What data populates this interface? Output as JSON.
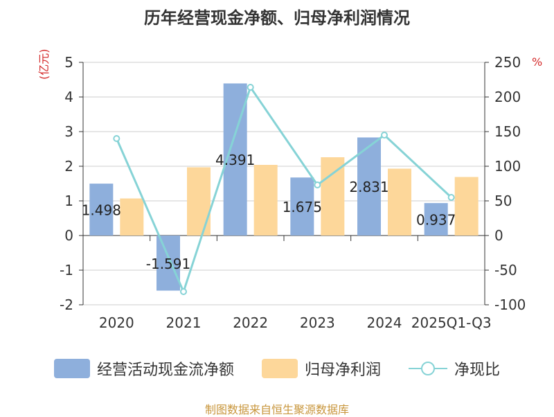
{
  "title": "历年经营现金净额、归母净利润情况",
  "left_unit": "(亿元)",
  "right_unit": "%",
  "source": "制图数据来自恒生聚源数据库",
  "colors": {
    "cash_flow": "#8eafdc",
    "net_profit": "#fdd79a",
    "ratio": "#86d3d6",
    "axis": "#333333",
    "grid": "#cccccc",
    "unit": "#d42a2a"
  },
  "chart_data": {
    "type": "bar",
    "categories": [
      "2020",
      "2021",
      "2022",
      "2023",
      "2024",
      "2025Q1-Q3"
    ],
    "series": [
      {
        "name": "经营活动现金流净额",
        "type": "bar",
        "axis": "left",
        "values": [
          1.498,
          -1.591,
          4.391,
          1.675,
          2.831,
          0.937
        ],
        "labels": [
          "1.498",
          "-1.591",
          "4.391",
          "1.675",
          "2.831",
          "0.937"
        ]
      },
      {
        "name": "归母净利润",
        "type": "bar",
        "axis": "left",
        "values": [
          1.07,
          1.97,
          2.04,
          2.26,
          1.93,
          1.69
        ]
      },
      {
        "name": "净现比",
        "type": "line",
        "axis": "right",
        "values": [
          140,
          -81,
          214,
          73,
          145,
          55
        ]
      }
    ],
    "y_left": {
      "min": -2,
      "max": 5,
      "ticks": [
        -2,
        -1,
        0,
        1,
        2,
        3,
        4,
        5
      ]
    },
    "y_right": {
      "min": -100,
      "max": 250,
      "ticks": [
        -100,
        -50,
        0,
        50,
        100,
        150,
        200,
        250
      ]
    },
    "grid": true,
    "legend_position": "bottom"
  }
}
